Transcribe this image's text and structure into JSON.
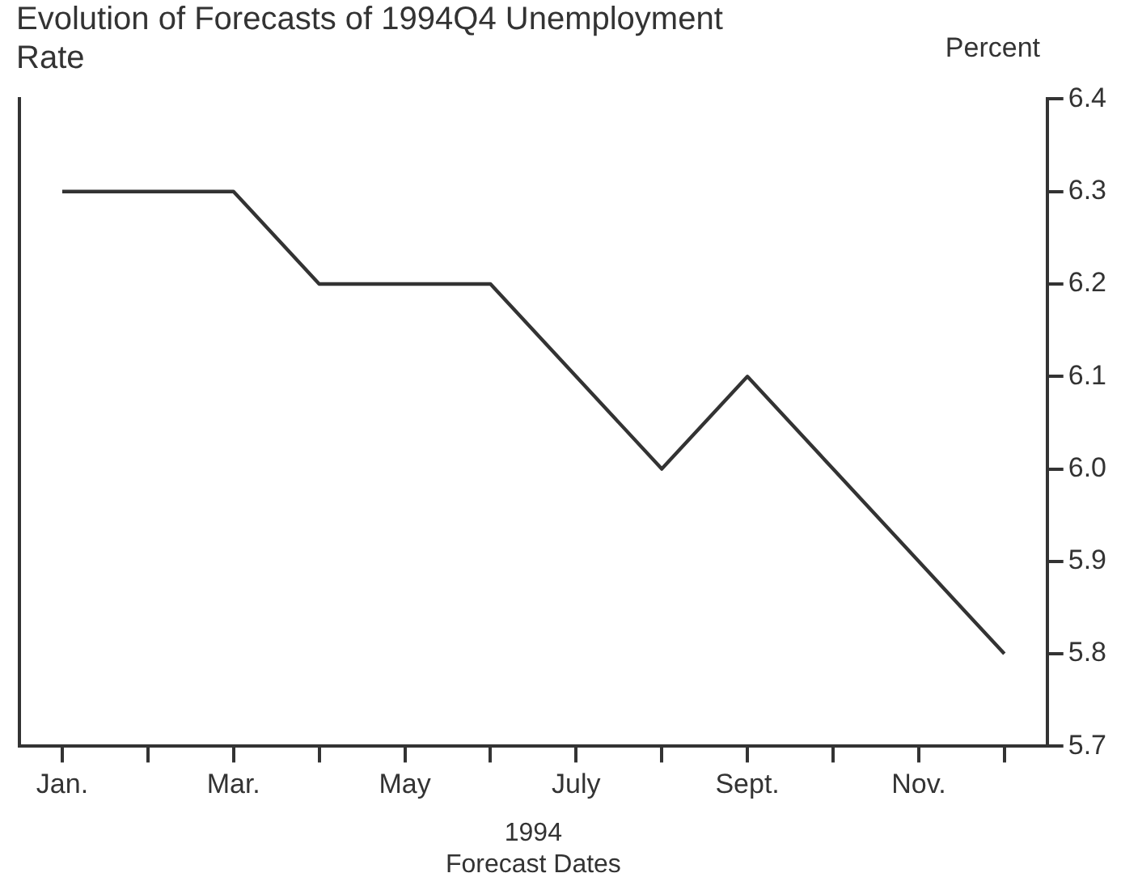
{
  "chart_data": {
    "type": "line",
    "title": "Evolution of Forecasts of 1994Q4 Unemployment Rate",
    "ylabel": "Percent",
    "xlabel": "Forecast Dates",
    "annotations": [
      "1994"
    ],
    "categories": [
      "Jan.",
      null,
      "Mar.",
      null,
      "May",
      null,
      "July",
      null,
      "Sept.",
      null,
      "Nov.",
      null
    ],
    "series": [
      {
        "color": "#333333",
        "values": [
          6.3,
          6.3,
          6.3,
          6.2,
          6.2,
          6.2,
          6.1,
          6.0,
          6.1,
          6.0,
          5.9,
          5.8
        ]
      }
    ],
    "ylim": [
      5.7,
      6.4
    ],
    "yticks": [
      {
        "value": 5.7,
        "label": "5.7"
      },
      {
        "value": 5.8,
        "label": "5.8"
      },
      {
        "value": 5.9,
        "label": "5.9"
      },
      {
        "value": 6.0,
        "label": "6.0"
      },
      {
        "value": 6.1,
        "label": "6.1"
      },
      {
        "value": 6.2,
        "label": "6.2"
      },
      {
        "value": 6.3,
        "label": "6.3"
      },
      {
        "value": 6.4,
        "label": "6.4"
      }
    ],
    "grid": false,
    "legend": false,
    "marker": "none",
    "line_style": "solid"
  }
}
